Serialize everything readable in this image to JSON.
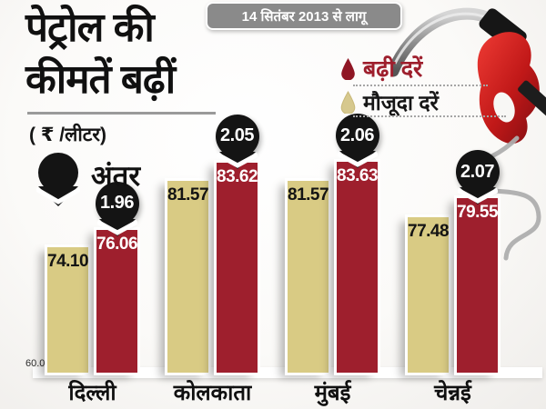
{
  "title": {
    "line1": "पेट्रोल की",
    "line2": "कीमतें बढ़ीं"
  },
  "unit_label": "( ₹ /लीटर)",
  "banner": "14 सितंबर 2013 से लागू",
  "legend": {
    "increased": "बढ़ी दरें",
    "current": "मौजूदा दरें",
    "difference": "अंतर"
  },
  "baseline_label": "60.00",
  "groups": [
    {
      "city": "दिल्ली",
      "old": "74.10",
      "new": "76.06",
      "diff": "1.96"
    },
    {
      "city": "कोलकाता",
      "old": "81.57",
      "new": "83.62",
      "diff": "2.05"
    },
    {
      "city": "मुंबई",
      "old": "81.57",
      "new": "83.63",
      "diff": "2.06"
    },
    {
      "city": "चेन्नई",
      "old": "77.48",
      "new": "79.55",
      "diff": "2.07"
    }
  ],
  "colors": {
    "increased_bar": "#9e1f2d",
    "current_bar": "#d9cb84",
    "balloon": "#141414",
    "banner_bg": "#8a8a8a",
    "accent_text": "#9e1f2d"
  },
  "chart_data": {
    "type": "bar",
    "title": "पेट्रोल की कीमतें बढ़ीं",
    "subtitle": "14 सितंबर 2013 से लागू",
    "ylabel": "₹/लीटर",
    "categories": [
      "दिल्ली",
      "कोलकाता",
      "मुंबई",
      "चेन्नई"
    ],
    "series": [
      {
        "name": "मौजूदा दरें",
        "values": [
          74.1,
          81.57,
          81.57,
          77.48
        ]
      },
      {
        "name": "बढ़ी दरें",
        "values": [
          76.06,
          83.62,
          83.63,
          79.55
        ]
      }
    ],
    "differences": [
      1.96,
      2.05,
      2.06,
      2.07
    ],
    "baseline": 60.0,
    "ylim": [
      60.0,
      86.0
    ],
    "grid": false,
    "legend_position": "top-right"
  }
}
